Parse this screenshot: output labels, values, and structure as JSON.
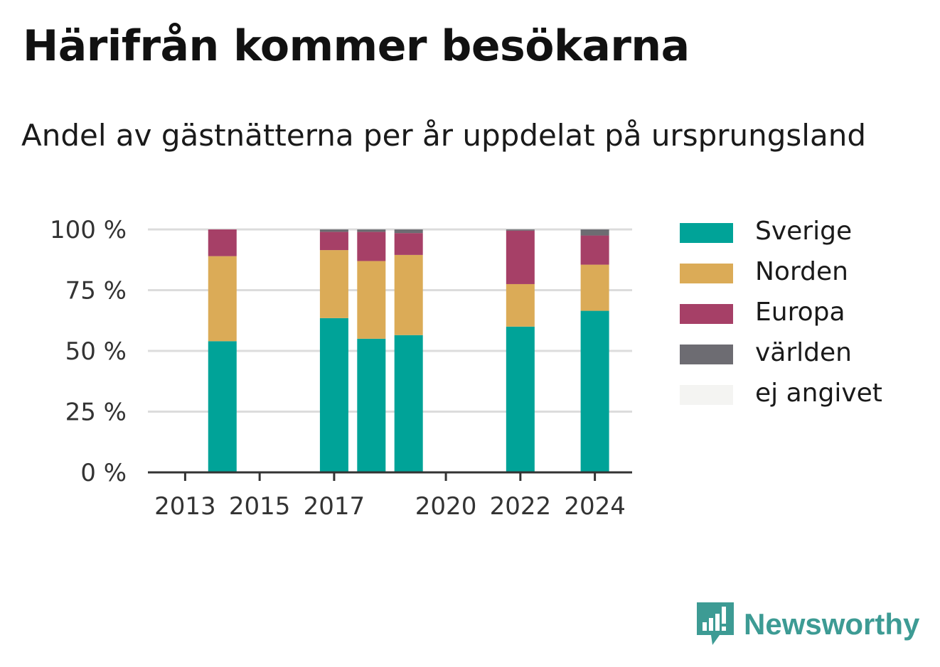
{
  "title": "Härifrån kommer besökarna",
  "subtitle": "Andel av gästnätterna per år uppdelat på ursprungsland",
  "brand": {
    "name": "Newsworthy",
    "icon": "chart-bubble-icon",
    "color": "#3d9b94"
  },
  "chart_data": {
    "type": "bar",
    "stacked": true,
    "x": [
      2014,
      2017,
      2018,
      2019,
      2022,
      2024
    ],
    "xticks": [
      2013,
      2015,
      2017,
      2020,
      2022,
      2024
    ],
    "xlim": [
      2012,
      2025
    ],
    "ylim": [
      0,
      100
    ],
    "yticks": [
      0,
      25,
      50,
      75,
      100
    ],
    "ytick_suffix": " %",
    "grid": true,
    "legend_position": "right",
    "series": [
      {
        "name": "Sverige",
        "color": "#00a398",
        "values": [
          54,
          63.5,
          55,
          56.5,
          60,
          66.5
        ]
      },
      {
        "name": "Norden",
        "color": "#dbab57",
        "values": [
          35,
          28,
          32,
          33,
          17.5,
          19
        ]
      },
      {
        "name": "Europa",
        "color": "#a64067",
        "values": [
          11,
          7.5,
          12,
          9,
          22,
          12
        ]
      },
      {
        "name": "världen",
        "color": "#6d6c72",
        "values": [
          0,
          1,
          1,
          1.5,
          0.5,
          2.5
        ]
      },
      {
        "name": "ej angivet",
        "color": "#f4f4f2",
        "values": [
          0,
          0,
          0,
          0,
          0,
          0
        ]
      }
    ]
  }
}
